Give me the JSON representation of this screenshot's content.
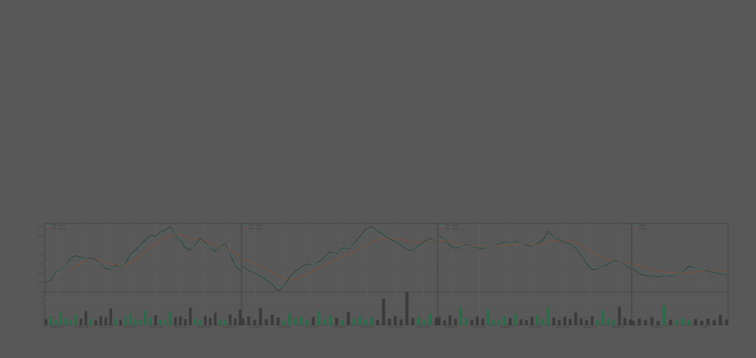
{
  "chart_data": {
    "type": "line",
    "title": "",
    "legend_placement": "top-left",
    "grid": true,
    "theme": {
      "background": "#585858",
      "frame": "#3e3e3e",
      "grid": "#666666",
      "price": "#2f3b35",
      "ma_short": "#3f6f6a",
      "ma_long": "#8a4d30",
      "volume_down": "#3b3b3b",
      "volume_up": "#2f6a4a"
    },
    "panels": [
      {
        "legend": [
          "MA 1 (days)",
          "MA 2 (days)"
        ],
        "date_ticks": [
          "2018-01-02",
          "2018-01-08",
          "2018-01-14",
          "2018-01-21",
          "2018-01-26",
          "2018-02-01",
          "2018-02-08",
          "2018-02-13"
        ],
        "price": [
          21.0,
          21.4,
          22.8,
          23.0,
          23.6,
          24.9,
          25.3,
          25.0,
          24.7,
          24.9,
          24.6,
          24.0,
          23.2,
          23.1,
          23.8,
          23.5,
          24.1,
          25.6,
          26.3,
          27.0,
          27.9,
          28.6,
          28.4,
          29.1,
          29.4,
          30.0,
          28.6,
          27.8,
          26.6,
          26.2,
          27.1,
          28.1,
          27.4,
          26.7,
          26.0,
          26.8,
          27.2,
          25.5,
          23.7,
          22.9
        ],
        "ma_short": [
          21.2,
          21.6,
          22.5,
          23.0,
          23.6,
          24.6,
          25.0,
          24.9,
          24.7,
          24.7,
          24.5,
          24.0,
          23.4,
          23.2,
          23.6,
          23.6,
          24.0,
          25.2,
          26.0,
          26.7,
          27.6,
          28.3,
          28.3,
          28.9,
          29.2,
          29.6,
          28.7,
          27.9,
          26.9,
          26.4,
          26.9,
          27.7,
          27.3,
          26.7,
          26.2,
          26.7,
          26.9,
          25.7,
          24.2,
          23.4
        ],
        "ma_long": [
          null,
          null,
          null,
          null,
          null,
          22.9,
          23.6,
          24.1,
          24.5,
          24.7,
          24.7,
          24.5,
          24.2,
          23.9,
          23.8,
          23.7,
          23.8,
          24.2,
          24.7,
          25.3,
          25.9,
          26.6,
          27.2,
          27.7,
          28.1,
          28.5,
          28.7,
          28.7,
          28.4,
          28.1,
          27.9,
          27.8,
          27.6,
          27.3,
          27.0,
          26.8,
          26.6,
          26.3,
          25.8,
          25.3
        ],
        "volume": [
          2.1,
          3.2,
          1.8,
          4.5,
          2.6,
          1.9,
          3.7,
          2.4,
          5.1,
          2.2,
          1.7,
          3.3,
          2.8,
          6.0,
          2.5,
          1.9,
          3.0,
          4.2,
          2.3,
          1.8,
          5.4,
          2.7,
          3.6,
          2.0,
          1.6,
          4.8,
          2.9,
          3.1,
          2.2,
          6.3,
          2.5,
          1.9,
          3.4,
          2.6,
          4.4,
          2.1,
          1.8,
          3.9,
          2.4,
          5.6
        ]
      },
      {
        "legend": [
          "MA 1 (days)",
          "MA 2 (days)"
        ],
        "date_ticks": [
          "2018-03-01",
          "2018-03-08",
          "2018-03-15",
          "2018-03-22",
          "2018-03-29",
          "2018-04-05",
          "2018-04-12"
        ],
        "price": [
          23.6,
          22.9,
          22.5,
          22.0,
          21.4,
          20.7,
          19.6,
          20.4,
          21.9,
          22.8,
          23.5,
          23.9,
          23.8,
          24.3,
          25.2,
          25.9,
          25.6,
          26.5,
          26.4,
          27.3,
          28.4,
          29.6,
          30.0,
          29.2,
          28.7,
          28.0,
          27.6,
          27.0,
          26.3,
          26.1,
          26.9,
          27.6,
          28.1,
          27.5
        ],
        "ma_short": [
          23.8,
          23.1,
          22.6,
          22.1,
          21.5,
          20.9,
          20.1,
          20.3,
          21.4,
          22.4,
          23.2,
          23.7,
          23.8,
          24.2,
          24.9,
          25.6,
          25.7,
          26.3,
          26.5,
          27.1,
          28.0,
          29.0,
          29.6,
          29.3,
          28.8,
          28.2,
          27.7,
          27.1,
          26.5,
          26.2,
          26.7,
          27.3,
          27.8,
          27.6
        ],
        "ma_long": [
          24.8,
          24.5,
          24.1,
          23.7,
          23.2,
          22.7,
          22.1,
          21.6,
          21.4,
          21.5,
          21.9,
          22.3,
          22.8,
          23.3,
          23.8,
          24.3,
          24.7,
          25.1,
          25.5,
          25.9,
          26.4,
          26.9,
          27.4,
          27.8,
          28.0,
          28.1,
          28.0,
          27.9,
          27.7,
          27.5,
          27.4,
          27.4,
          27.5,
          27.5
        ],
        "volume": [
          2.4,
          3.1,
          1.9,
          6.1,
          2.2,
          3.8,
          2.7,
          1.6,
          4.2,
          2.5,
          3.0,
          1.8,
          2.9,
          5.0,
          2.1,
          3.4,
          2.6,
          1.7,
          4.7,
          2.3,
          3.2,
          2.0,
          2.8,
          1.9,
          9.5,
          2.4,
          3.3,
          2.1,
          11.8,
          2.6,
          3.0,
          1.8,
          4.1,
          2.7
        ]
      },
      {
        "legend": [
          "MA 1 (days)",
          "MA 2 (days)"
        ],
        "date_ticks": [
          "2018-05-01",
          "2018-05-10",
          "2018-05-19",
          "2018-05-28",
          "2018-06-06",
          "2018-06-15",
          "2018-06-24"
        ],
        "price": [
          28.6,
          27.9,
          26.9,
          26.5,
          26.8,
          27.1,
          26.9,
          26.6,
          26.4,
          26.7,
          26.9,
          27.2,
          27.5,
          27.3,
          27.6,
          27.3,
          27.0,
          26.8,
          27.2,
          27.8,
          29.2,
          28.3,
          27.8,
          27.5,
          27.2,
          26.5,
          25.4,
          24.0,
          23.0,
          23.2,
          23.6,
          23.9,
          24.5,
          24.3,
          23.9,
          23.2
        ],
        "ma_short": [
          28.3,
          27.9,
          27.1,
          26.7,
          26.8,
          27.0,
          26.9,
          26.7,
          26.5,
          26.7,
          26.9,
          27.1,
          27.4,
          27.3,
          27.5,
          27.3,
          27.1,
          26.9,
          27.1,
          27.6,
          28.6,
          28.3,
          27.9,
          27.6,
          27.3,
          26.7,
          25.7,
          24.4,
          23.4,
          23.3,
          23.5,
          23.8,
          24.3,
          24.3,
          24.0,
          23.5
        ],
        "ma_long": [
          27.6,
          27.7,
          27.6,
          27.4,
          27.2,
          27.1,
          27.0,
          26.9,
          26.8,
          26.8,
          26.8,
          26.9,
          27.0,
          27.0,
          27.1,
          27.1,
          27.1,
          27.1,
          27.1,
          27.2,
          27.5,
          27.6,
          27.7,
          27.7,
          27.6,
          27.4,
          27.0,
          26.5,
          25.9,
          25.4,
          25.0,
          24.7,
          24.5,
          24.3,
          24.2,
          24.0
        ],
        "volume": [
          2.9,
          1.8,
          3.6,
          2.2,
          6.2,
          2.5,
          1.9,
          3.1,
          2.4,
          5.7,
          2.0,
          1.7,
          3.3,
          2.6,
          4.0,
          2.1,
          1.8,
          2.9,
          3.5,
          2.2,
          6.4,
          2.7,
          1.9,
          3.0,
          2.3,
          4.6,
          2.5,
          1.8,
          3.2,
          2.0,
          5.3,
          2.4,
          1.9,
          6.7,
          2.6,
          2.1
        ]
      },
      {
        "legend": [
          "MA(d)",
          "MA(d)"
        ],
        "date_ticks": [
          "2018/08",
          "12/18"
        ],
        "price": [
          23.2,
          22.4,
          22.1,
          22.0,
          21.9,
          22.1,
          22.0,
          22.3,
          22.8,
          23.6,
          23.3,
          23.1,
          22.8,
          22.6,
          22.4,
          22.2
        ],
        "ma_short": [
          23.4,
          22.7,
          22.3,
          22.1,
          22.0,
          22.1,
          22.1,
          22.3,
          22.7,
          23.3,
          23.3,
          23.1,
          22.9,
          22.7,
          22.5,
          22.3
        ],
        "ma_long": [
          24.0,
          23.7,
          23.4,
          23.1,
          22.9,
          22.7,
          22.6,
          22.5,
          22.5,
          22.6,
          22.7,
          22.8,
          22.9,
          22.9,
          22.8,
          22.7
        ],
        "volume": [
          1.6,
          2.3,
          1.9,
          2.8,
          1.5,
          7.1,
          2.0,
          1.7,
          2.5,
          1.8,
          2.2,
          1.6,
          2.4,
          1.9,
          3.8,
          2.1
        ]
      }
    ],
    "price_tick_labels": [
      "21.0",
      "22.5",
      "24.0",
      "25.5",
      "27.0",
      "28.5",
      "30.0"
    ],
    "ylim": [
      19.5,
      30.5
    ],
    "volume_tick_labels": [
      "0",
      "2",
      "4",
      "6",
      "8",
      "10",
      "12"
    ],
    "volume_ylim": [
      0,
      12
    ]
  }
}
